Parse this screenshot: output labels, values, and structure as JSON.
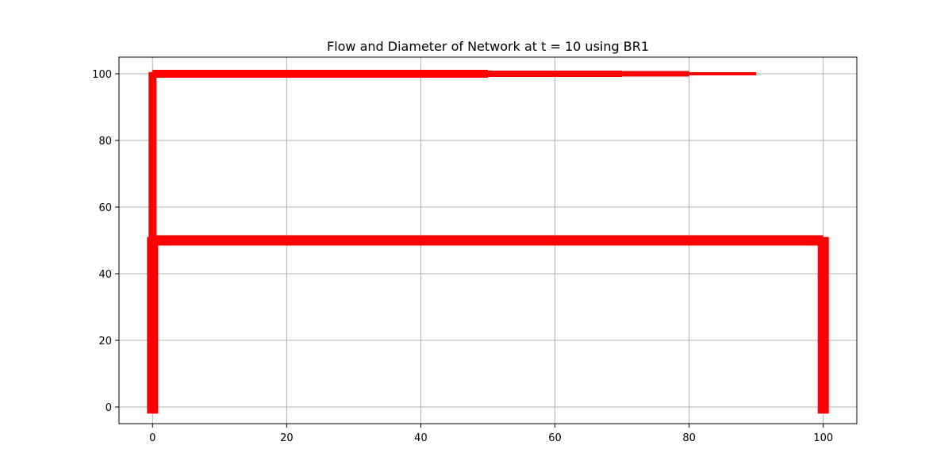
{
  "chart_data": {
    "type": "line",
    "title": "Flow and Diameter of Network at t = 10 using BR1",
    "xlabel": "",
    "ylabel": "",
    "xlim": [
      -5,
      105
    ],
    "ylim": [
      -5,
      105
    ],
    "grid": true,
    "legend": false,
    "x_ticks": [
      0,
      20,
      40,
      60,
      80,
      100
    ],
    "y_ticks": [
      0,
      20,
      40,
      60,
      80,
      100
    ],
    "line_color": "#ff0000",
    "segments": [
      {
        "x": [
          0,
          0
        ],
        "y": [
          -2,
          51
        ],
        "width": 14
      },
      {
        "x": [
          0,
          100
        ],
        "y": [
          50,
          50
        ],
        "width": 13
      },
      {
        "x": [
          100,
          100
        ],
        "y": [
          51,
          -2
        ],
        "width": 14
      },
      {
        "x": [
          0,
          0
        ],
        "y": [
          50,
          100.5
        ],
        "width": 10
      },
      {
        "x": [
          0,
          50
        ],
        "y": [
          100,
          100
        ],
        "width": 10
      },
      {
        "x": [
          50,
          70
        ],
        "y": [
          100,
          100
        ],
        "width": 8
      },
      {
        "x": [
          70,
          80
        ],
        "y": [
          100,
          100
        ],
        "width": 7
      },
      {
        "x": [
          80,
          90
        ],
        "y": [
          100,
          100
        ],
        "width": 4
      }
    ]
  }
}
